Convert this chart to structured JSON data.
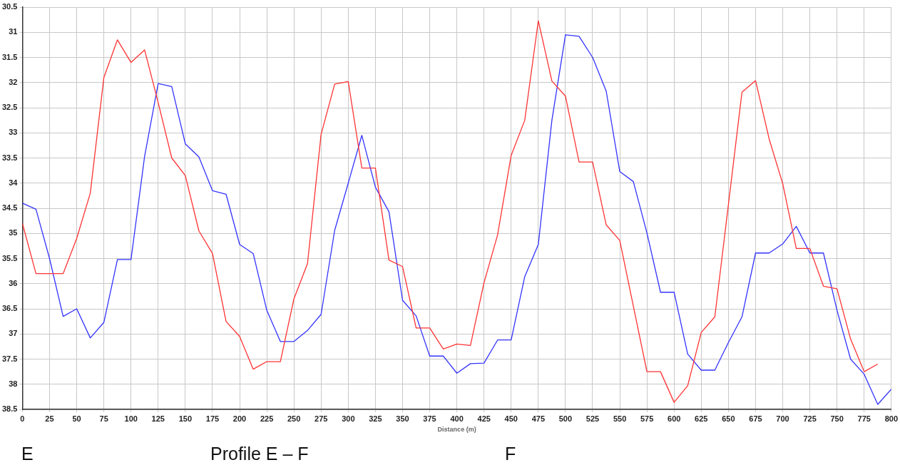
{
  "chart_data": {
    "type": "line",
    "xlabel": "Distance (m)",
    "x": [
      0,
      12.5,
      25,
      37.5,
      50,
      62.5,
      75,
      87.5,
      100,
      112.5,
      125,
      137.5,
      150,
      162.5,
      175,
      187.5,
      200,
      212.5,
      225,
      237.5,
      250,
      262.5,
      275,
      287.5,
      300,
      312.5,
      325,
      337.5,
      350,
      362.5,
      375,
      387.5,
      400,
      412.5,
      425,
      437.5,
      450,
      462.5,
      475,
      487.5,
      500,
      512.5,
      525,
      537.5,
      550,
      562.5,
      575,
      587.5,
      600,
      612.5,
      625,
      637.5,
      650,
      662.5,
      675,
      687.5,
      700,
      712.5,
      725,
      737.5,
      750,
      762.5,
      775,
      787.5,
      800
    ],
    "series": [
      {
        "color": "#ff3333",
        "values": [
          34.8,
          35.8,
          35.8,
          35.8,
          35.1,
          34.2,
          31.9,
          31.15,
          31.6,
          31.35,
          32.4,
          33.5,
          33.85,
          34.95,
          35.4,
          36.75,
          37.05,
          37.7,
          37.55,
          37.55,
          36.3,
          35.6,
          33.03,
          32.03,
          31.98,
          33.7,
          33.7,
          35.53,
          35.66,
          36.88,
          36.88,
          37.3,
          37.2,
          37.23,
          35.98,
          35.03,
          33.45,
          32.75,
          30.77,
          31.97,
          32.27,
          33.58,
          33.58,
          34.83,
          35.14,
          36.45,
          37.75,
          37.75,
          38.36,
          38.03,
          36.97,
          36.66,
          34.43,
          32.19,
          31.96,
          33.12,
          34.01,
          35.3,
          35.3,
          36.05,
          36.1,
          37.1,
          37.75,
          37.6,
          null
        ]
      },
      {
        "color": "#3333ff",
        "values": [
          34.4,
          34.52,
          35.5,
          36.65,
          36.5,
          37.08,
          36.77,
          35.52,
          35.52,
          33.47,
          32.02,
          32.08,
          33.22,
          33.48,
          34.15,
          34.22,
          35.22,
          35.4,
          36.53,
          37.15,
          37.15,
          36.93,
          36.61,
          34.94,
          34.0,
          33.05,
          34.08,
          34.57,
          36.33,
          36.64,
          37.44,
          37.44,
          37.78,
          37.59,
          37.58,
          37.12,
          37.12,
          35.86,
          35.22,
          32.75,
          31.05,
          31.08,
          31.5,
          32.17,
          33.77,
          33.97,
          34.99,
          36.17,
          36.17,
          37.4,
          37.72,
          37.72,
          37.17,
          36.66,
          35.39,
          35.39,
          35.21,
          34.86,
          35.39,
          35.39,
          36.53,
          37.5,
          37.8,
          38.4,
          38.1
        ]
      }
    ],
    "xlim": [
      0,
      800
    ],
    "xticks": [
      0,
      25,
      50,
      75,
      100,
      125,
      150,
      175,
      200,
      225,
      250,
      275,
      300,
      325,
      350,
      375,
      400,
      425,
      450,
      475,
      500,
      525,
      550,
      575,
      600,
      625,
      650,
      675,
      700,
      725,
      750,
      775,
      800
    ],
    "ylim": [
      38.5,
      30.5
    ],
    "yticks": [
      30.5,
      31,
      31.5,
      32,
      32.5,
      33,
      33.5,
      34,
      34.5,
      35,
      35.5,
      36,
      36.5,
      37,
      37.5,
      38,
      38.5
    ],
    "grid": true,
    "legend": false,
    "marker": "none",
    "line_style": "solid",
    "annotations": [
      "E",
      "Profile E – F",
      "F"
    ]
  }
}
